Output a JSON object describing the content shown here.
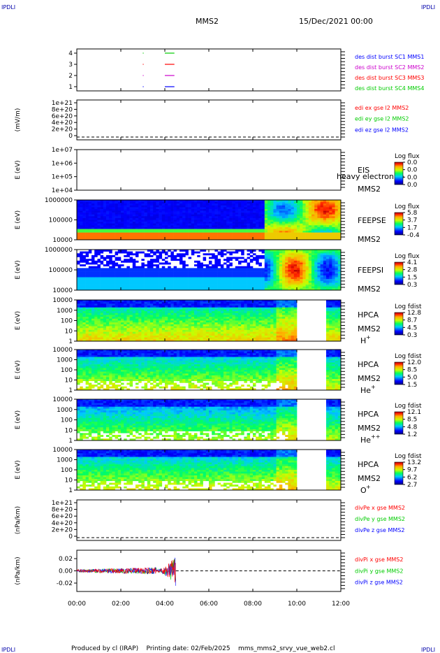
{
  "corner_marks": {
    "top_left": "IPDLI",
    "top_right": "IPDLI",
    "bottom_left": "IPDLI",
    "bottom_right": "IPDLI"
  },
  "header": {
    "spacecraft": "MMS2",
    "datetime": "15/Dec/2021 00:00"
  },
  "footer": {
    "text": "Produced by cl (IRAP)    Printing date: 02/Feb/2025    mms_mms2_srvy_vue_web2.cl"
  },
  "colors": {
    "red": "#ff0000",
    "green": "#00cc00",
    "blue": "#0000ff",
    "magenta": "#cc00cc"
  },
  "chart_data": {
    "type": "heatmap",
    "x_axis": {
      "ticks": [
        "00:00",
        "02:00",
        "04:00",
        "06:00",
        "08:00",
        "10:00",
        "12:00"
      ],
      "range": [
        "00:00",
        "12:00"
      ]
    },
    "panels": [
      {
        "id": "burst",
        "type": "line",
        "yticks": [
          "1",
          "2",
          "3",
          "4"
        ],
        "labels": [
          {
            "text": "des dist burst SC1 MMS1",
            "color": "#0000ff"
          },
          {
            "text": "des dist burst SC2 MMS2",
            "color": "#cc00cc"
          },
          {
            "text": "des dist burst SC3 MMS3",
            "color": "#ff0000"
          },
          {
            "text": "des dist burst SC4 MMS4",
            "color": "#00cc00"
          }
        ],
        "segments": [
          {
            "sc": 4,
            "start": "04:00",
            "end": "04:25",
            "color": "#00cc00"
          },
          {
            "sc": 3,
            "start": "04:00",
            "end": "04:25",
            "color": "#ff0000"
          },
          {
            "sc": 2,
            "start": "04:00",
            "end": "04:25",
            "color": "#cc00cc"
          },
          {
            "sc": 1,
            "start": "04:00",
            "end": "04:25",
            "color": "#0000ff"
          },
          {
            "sc": 4,
            "start": "03:00",
            "end": "03:01",
            "color": "#00cc00"
          },
          {
            "sc": 3,
            "start": "03:00",
            "end": "03:01",
            "color": "#ff0000"
          },
          {
            "sc": 2,
            "start": "03:00",
            "end": "03:01",
            "color": "#cc00cc"
          },
          {
            "sc": 1,
            "start": "03:00",
            "end": "03:01",
            "color": "#0000ff"
          }
        ]
      },
      {
        "id": "edi",
        "type": "line",
        "ylabel": "(mV/m)",
        "yticks": [
          "1e+21",
          "8e+20",
          "6e+20",
          "4e+20",
          "2e+20",
          "0"
        ],
        "labels": [
          {
            "text": "edi ex gse l2 MMS2",
            "color": "#ff0000"
          },
          {
            "text": "edi ey gse l2 MMS2",
            "color": "#00cc00"
          },
          {
            "text": "edi ez gse l2 MMS2",
            "color": "#0000ff"
          }
        ]
      },
      {
        "id": "eis",
        "type": "heatmap",
        "ylabel": "E (eV)",
        "yticks": [
          "1e+07",
          "1e+06",
          "1e+05",
          "1e+04"
        ],
        "label_lines": [
          "EIS",
          "MMS2"
        ],
        "overlay_text": "heavy electron to",
        "cbar_title": "Log flux",
        "cbar_ticks": [
          "0.0",
          "0.0",
          "0.0",
          "0.0"
        ]
      },
      {
        "id": "feepse",
        "type": "heatmap",
        "ylabel": "E (eV)",
        "yticks": [
          "1000000",
          "100000",
          "10000"
        ],
        "label_lines": [
          "FEEPSE",
          "MMS2"
        ],
        "cbar_title": "Log flux",
        "cbar_ticks": [
          "5.8",
          "3.7",
          "1.7",
          "-0.4"
        ]
      },
      {
        "id": "feepsi",
        "type": "heatmap",
        "ylabel": "E (eV)",
        "yticks": [
          "1000000",
          "100000",
          "10000"
        ],
        "label_lines": [
          "FEEPSI",
          "MMS2"
        ],
        "cbar_title": "Log flux",
        "cbar_ticks": [
          "4.1",
          "2.8",
          "1.5",
          "0.3"
        ]
      },
      {
        "id": "hpca_h",
        "type": "heatmap",
        "ylabel": "E (eV)",
        "yticks": [
          "10000",
          "1000",
          "100",
          "10",
          "1"
        ],
        "label_lines": [
          "HPCA",
          "MMS2"
        ],
        "species": "H",
        "charge": "+",
        "cbar_title": "Log fdist",
        "cbar_ticks": [
          "12.8",
          "8.7",
          "4.5",
          "0.3"
        ]
      },
      {
        "id": "hpca_he",
        "type": "heatmap",
        "ylabel": "E (eV)",
        "yticks": [
          "10000",
          "1000",
          "100",
          "10",
          "1"
        ],
        "label_lines": [
          "HPCA",
          "MMS2"
        ],
        "species": "He",
        "charge": "+",
        "cbar_title": "Log fdist",
        "cbar_ticks": [
          "12.0",
          "8.5",
          "5.0",
          "1.5"
        ]
      },
      {
        "id": "hpca_he2",
        "type": "heatmap",
        "ylabel": "E (eV)",
        "yticks": [
          "10000",
          "1000",
          "100",
          "10",
          "1"
        ],
        "label_lines": [
          "HPCA",
          "MMS2"
        ],
        "species": "He",
        "charge": "++",
        "cbar_title": "Log fdist",
        "cbar_ticks": [
          "12.1",
          "8.5",
          "4.8",
          "1.2"
        ]
      },
      {
        "id": "hpca_o",
        "type": "heatmap",
        "ylabel": "E (eV)",
        "yticks": [
          "10000",
          "1000",
          "100",
          "10",
          "1"
        ],
        "label_lines": [
          "HPCA",
          "MMS2"
        ],
        "species": "O",
        "charge": "+",
        "cbar_title": "Log fdist",
        "cbar_ticks": [
          "13.2",
          "9.7",
          "6.2",
          "2.7"
        ]
      },
      {
        "id": "divpe",
        "type": "line",
        "ylabel": "(nPa/km)",
        "yticks": [
          "1e+21",
          "8e+20",
          "6e+20",
          "4e+20",
          "2e+20",
          "0"
        ],
        "labels": [
          {
            "text": "divPe x gse MMS2",
            "color": "#ff0000"
          },
          {
            "text": "divPe y gse MMS2",
            "color": "#00cc00"
          },
          {
            "text": "divPe z gse MMS2",
            "color": "#0000ff"
          }
        ]
      },
      {
        "id": "divpi",
        "type": "line",
        "ylabel": "(nPa/km)",
        "yticks": [
          "0.02",
          "0.00",
          "-0.02"
        ],
        "ylim": [
          -0.03,
          0.03
        ],
        "labels": [
          {
            "text": "divPi x gse MMS2",
            "color": "#ff0000"
          },
          {
            "text": "divPi y gse MMS2",
            "color": "#00cc00"
          },
          {
            "text": "divPi z gse MMS2",
            "color": "#0000ff"
          }
        ],
        "data_window": {
          "start": "00:00",
          "end": "04:30",
          "amplitude_end": 0.025
        }
      }
    ]
  }
}
